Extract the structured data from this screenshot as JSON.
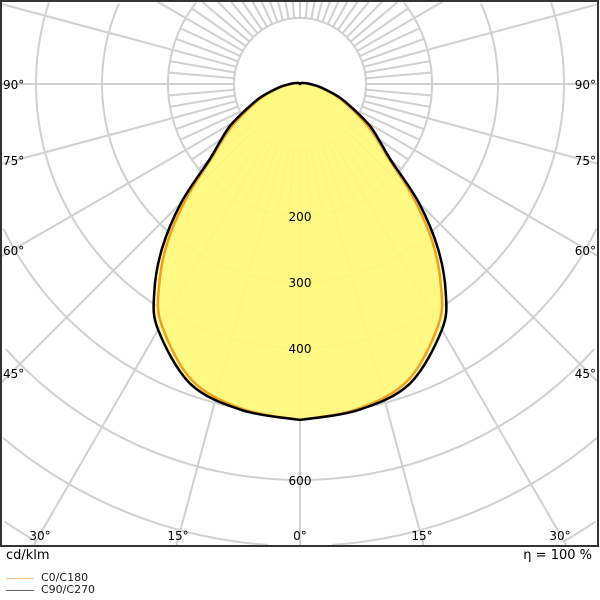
{
  "chart_data": {
    "type": "polar",
    "unit_label": "cd/klm",
    "efficiency_label": "η = 100 %",
    "radial_ticks": [
      200,
      300,
      400,
      600
    ],
    "radial_step": 100,
    "angle_labels_left": [
      "90°",
      "75°",
      "60°",
      "45°"
    ],
    "angle_labels_right": [
      "90°",
      "75°",
      "60°",
      "45°"
    ],
    "angle_labels_bottom": [
      "30°",
      "15°",
      "0°",
      "15°",
      "30°"
    ],
    "grid": true,
    "legend_position": "bottom-left",
    "series": [
      {
        "name": "C0/C180",
        "color": "#f0a020",
        "gamma": [
          0,
          10,
          20,
          30,
          35,
          40,
          45,
          50,
          55,
          60,
          70,
          80,
          90,
          100,
          120,
          150,
          180
        ],
        "values": [
          509,
          500,
          478,
          420,
          372,
          312,
          242,
          175,
          140,
          110,
          64,
          32,
          15,
          8,
          3,
          1,
          0
        ]
      },
      {
        "name": "C90/C270",
        "color": "#000000",
        "gamma": [
          0,
          10,
          20,
          30,
          35,
          40,
          45,
          50,
          55,
          60,
          70,
          80,
          90,
          100,
          120,
          150,
          180
        ],
        "values": [
          509,
          502,
          484,
          430,
          385,
          325,
          255,
          180,
          145,
          118,
          68,
          34,
          15,
          8,
          3,
          1,
          0
        ]
      }
    ],
    "fill_color": "#fff87a"
  }
}
